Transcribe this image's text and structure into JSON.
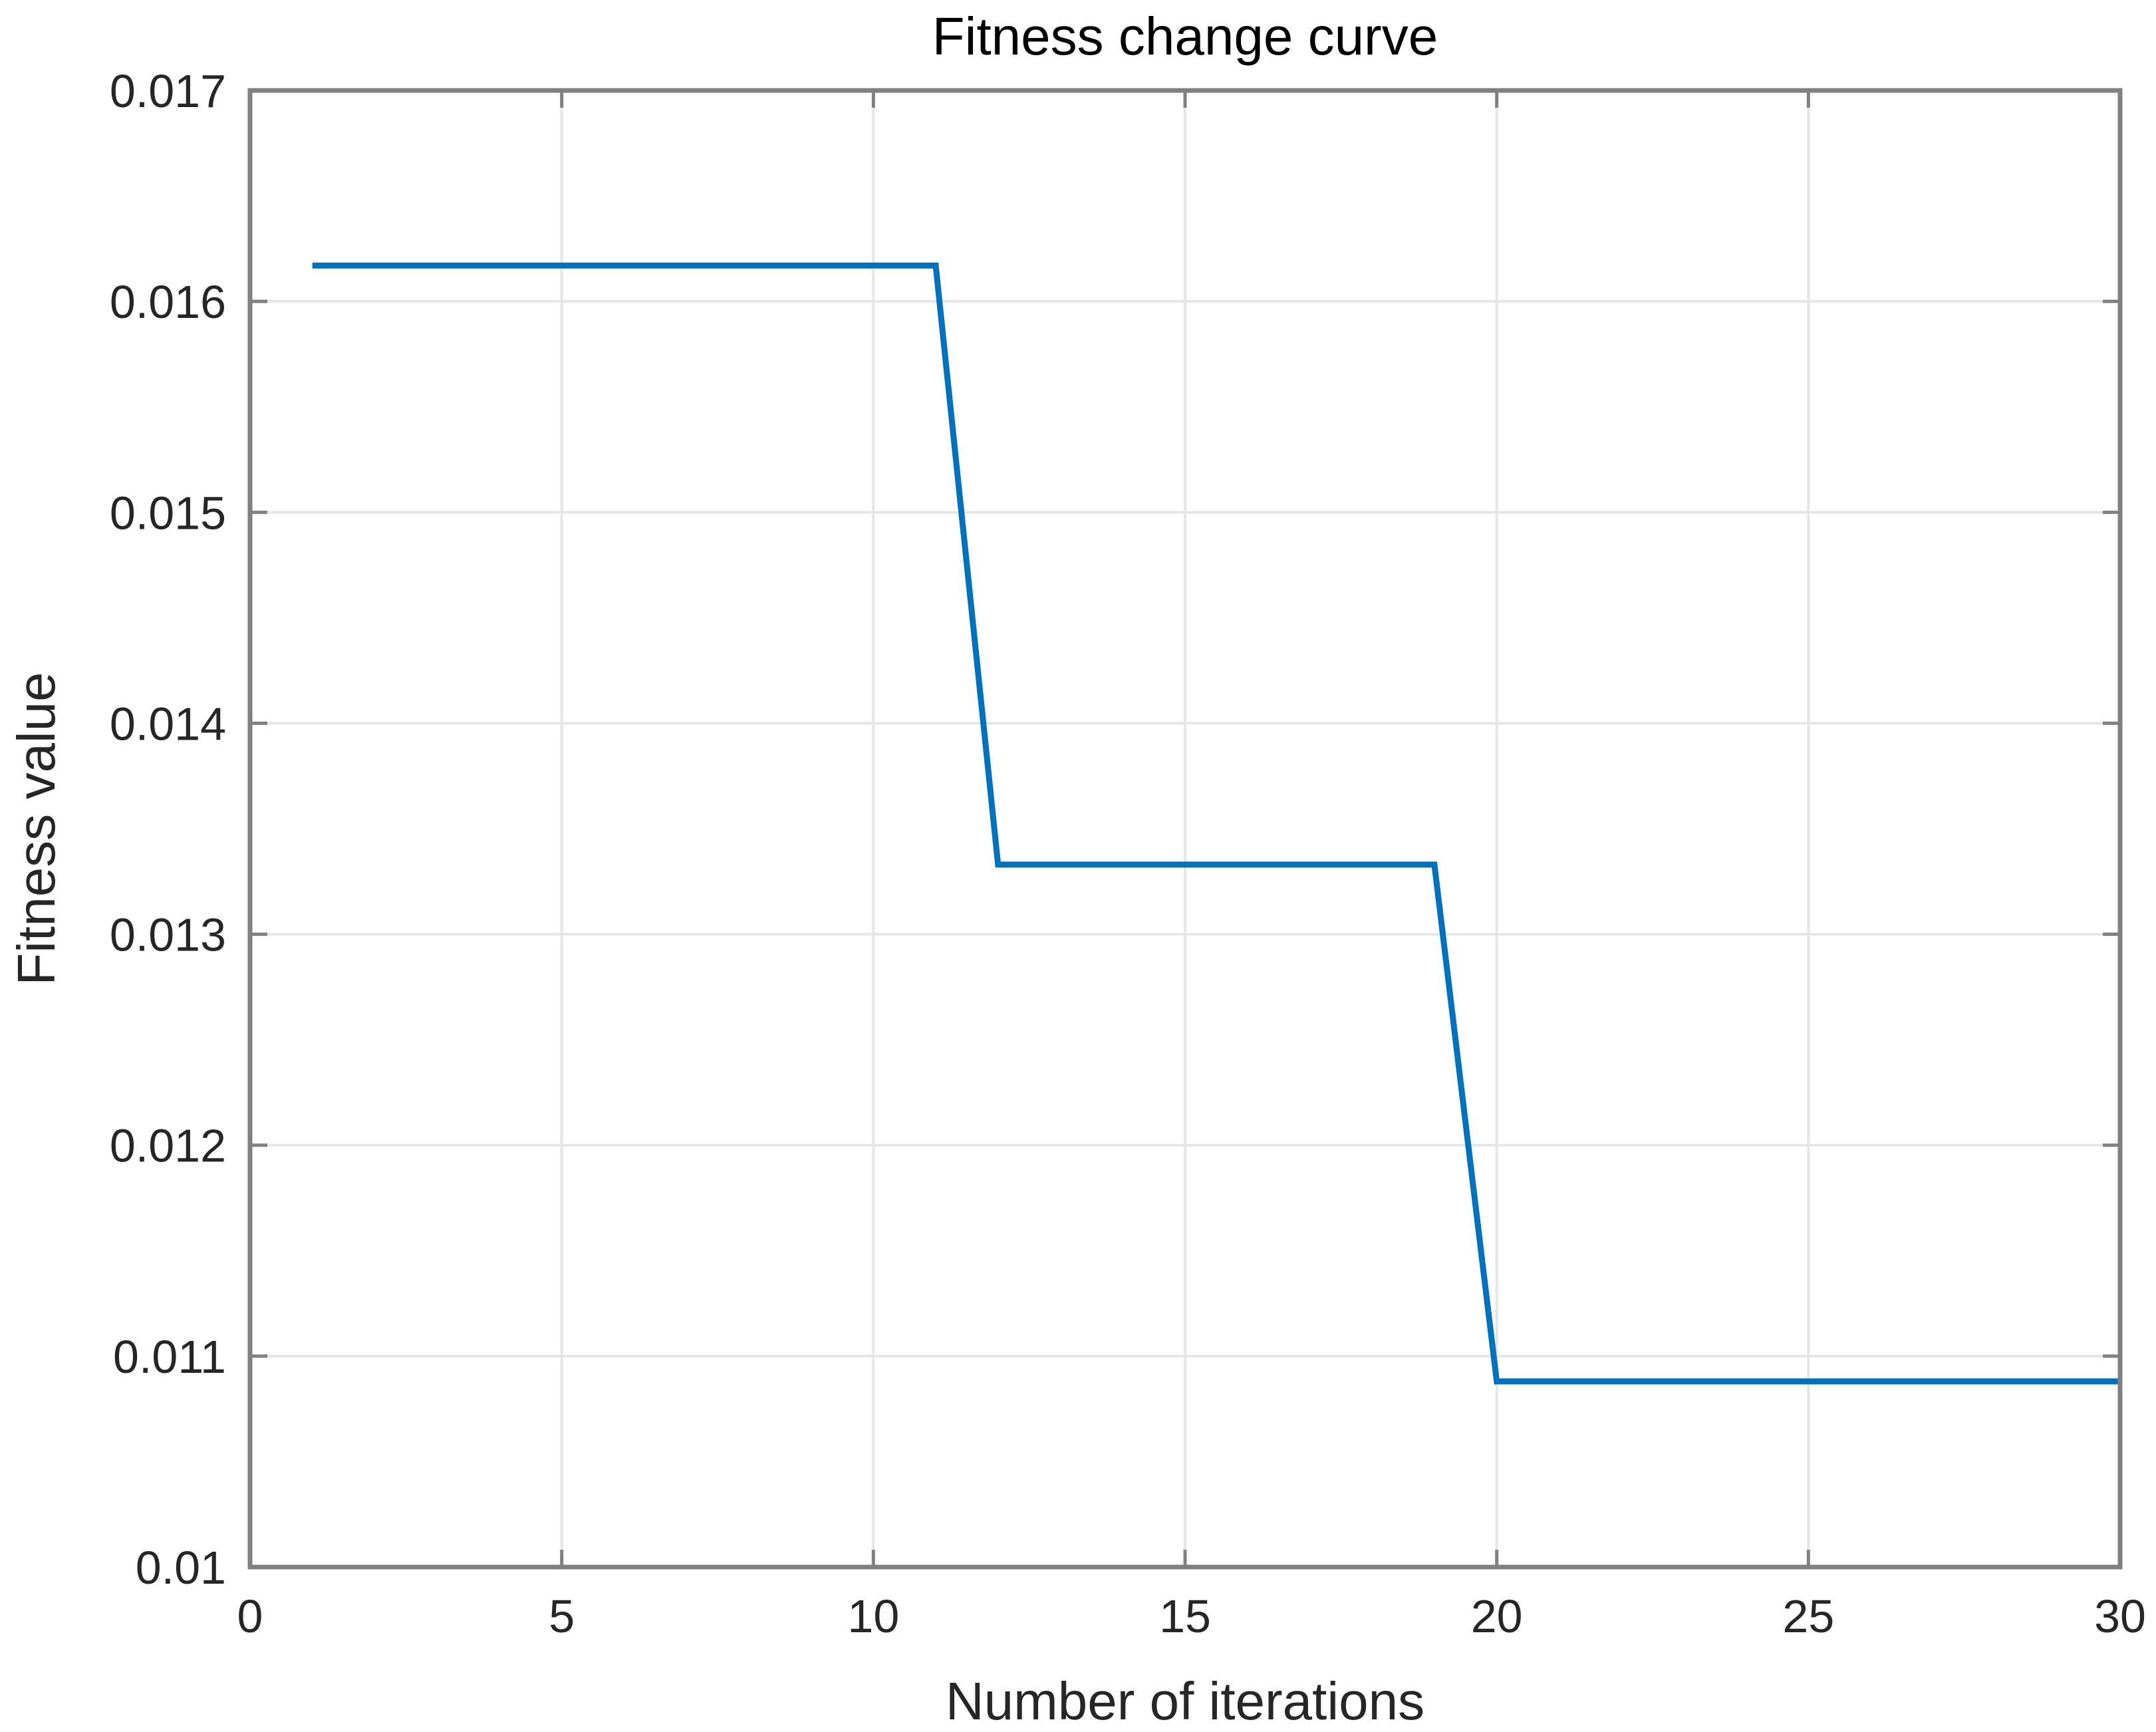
{
  "chart_data": {
    "type": "line",
    "title": "Fitness change curve",
    "xlabel": "Number of iterations",
    "ylabel": "Fitness value",
    "xlim": [
      0,
      30
    ],
    "ylim": [
      0.01,
      0.017
    ],
    "x_ticks": [
      "0",
      "5",
      "10",
      "15",
      "20",
      "25",
      "30"
    ],
    "x_tick_values": [
      0,
      5,
      10,
      15,
      20,
      25,
      30
    ],
    "y_ticks": [
      "0.01",
      "0.011",
      "0.012",
      "0.013",
      "0.014",
      "0.015",
      "0.016",
      "0.017"
    ],
    "y_tick_values": [
      0.01,
      0.011,
      0.012,
      0.013,
      0.014,
      0.015,
      0.016,
      0.017
    ],
    "grid": true,
    "series": [
      {
        "x": [
          1,
          11,
          12,
          19,
          20,
          30
        ],
        "y": [
          0.01617,
          0.01617,
          0.01333,
          0.01333,
          0.01088,
          0.01088
        ],
        "color": "#0072BD"
      }
    ],
    "colors": {
      "axis": "#262626",
      "grid": "#e6e6e6",
      "box": "#808080"
    }
  }
}
